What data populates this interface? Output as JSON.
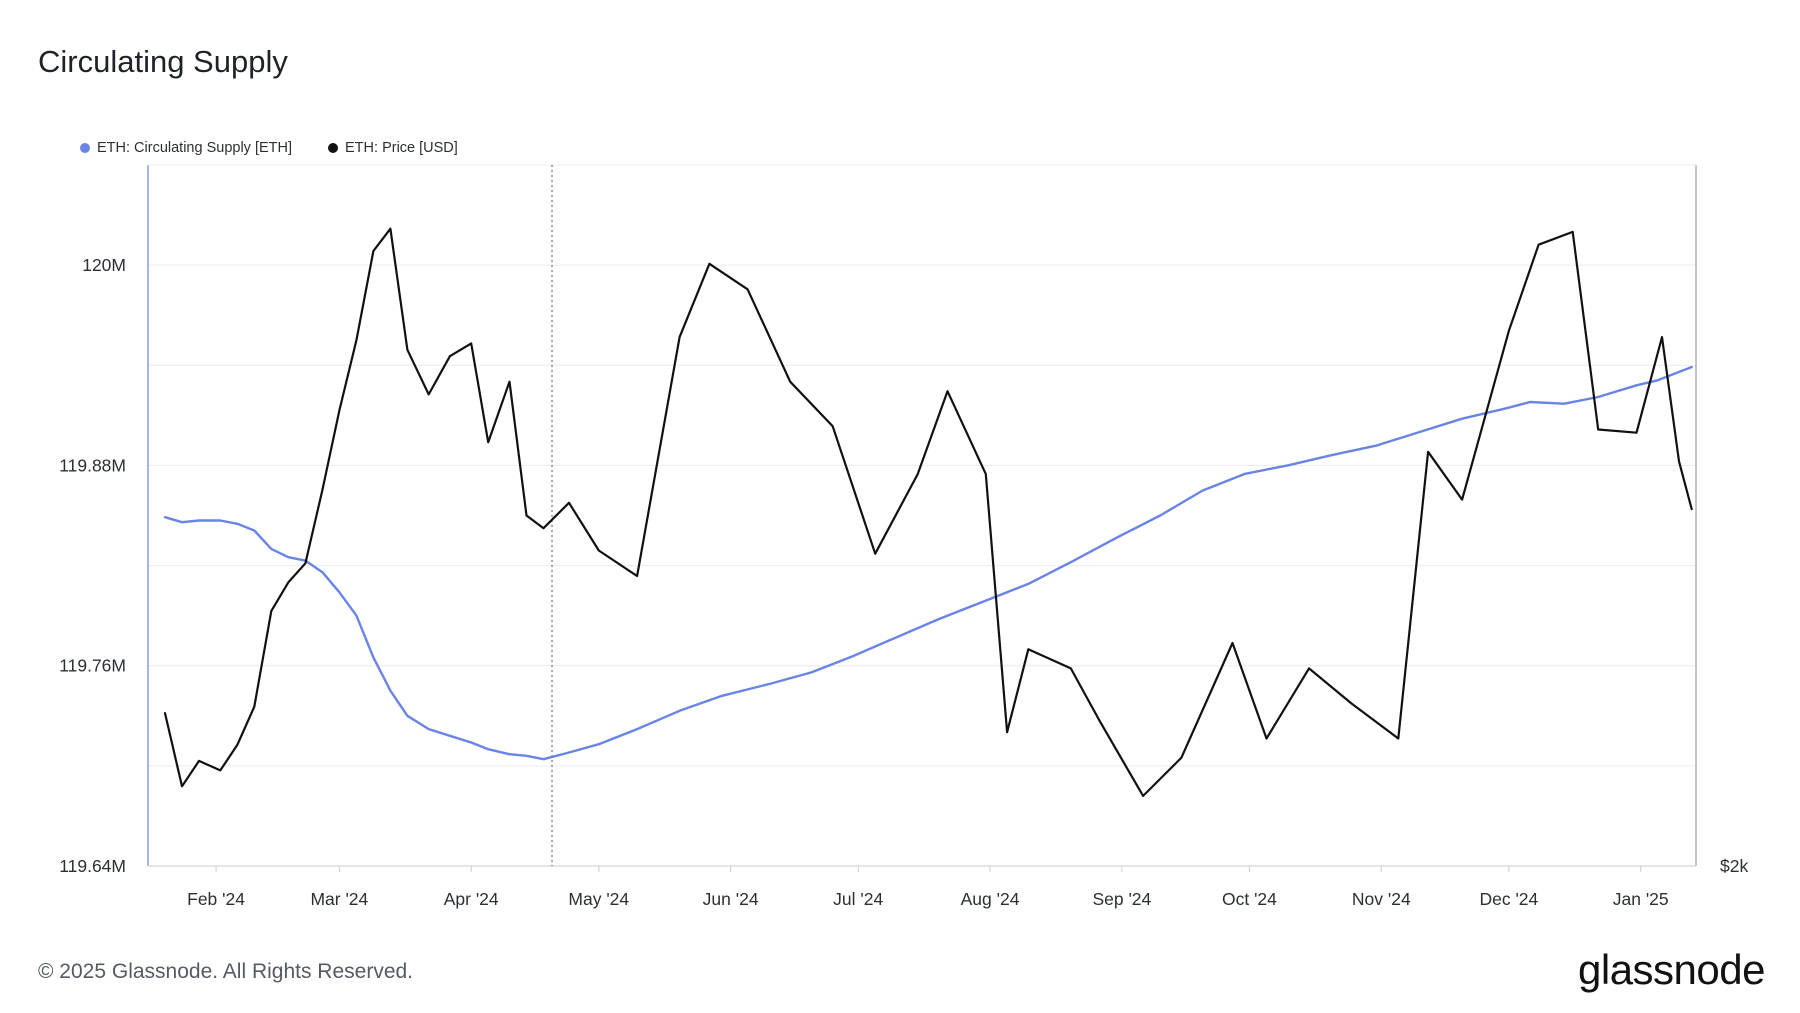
{
  "chart_data": {
    "type": "line",
    "title": "Circulating Supply",
    "legend_position": "top-left",
    "grid": true,
    "series": [
      {
        "name": "ETH: Circulating Supply [ETH]",
        "axis": "left",
        "color": "#6a84e6",
        "points": [
          [
            "2024-01-20",
            119.849
          ],
          [
            "2024-01-24",
            119.846
          ],
          [
            "2024-01-28",
            119.847
          ],
          [
            "2024-02-02",
            119.847
          ],
          [
            "2024-02-06",
            119.845
          ],
          [
            "2024-02-10",
            119.841
          ],
          [
            "2024-02-14",
            119.83
          ],
          [
            "2024-02-18",
            119.825
          ],
          [
            "2024-02-22",
            119.823
          ],
          [
            "2024-02-26",
            119.816
          ],
          [
            "2024-03-01",
            119.804
          ],
          [
            "2024-03-05",
            119.79
          ],
          [
            "2024-03-09",
            119.765
          ],
          [
            "2024-03-13",
            119.745
          ],
          [
            "2024-03-17",
            119.73
          ],
          [
            "2024-03-22",
            119.722
          ],
          [
            "2024-03-27",
            119.718
          ],
          [
            "2024-04-01",
            119.714
          ],
          [
            "2024-04-05",
            119.71
          ],
          [
            "2024-04-10",
            119.707
          ],
          [
            "2024-04-14",
            119.706
          ],
          [
            "2024-04-18",
            119.704
          ],
          [
            "2024-04-24",
            119.708
          ],
          [
            "2024-05-01",
            119.713
          ],
          [
            "2024-05-10",
            119.722
          ],
          [
            "2024-05-20",
            119.733
          ],
          [
            "2024-05-30",
            119.742
          ],
          [
            "2024-06-10",
            119.749
          ],
          [
            "2024-06-20",
            119.756
          ],
          [
            "2024-06-30",
            119.766
          ],
          [
            "2024-07-10",
            119.777
          ],
          [
            "2024-07-20",
            119.788
          ],
          [
            "2024-07-31",
            119.799
          ],
          [
            "2024-08-10",
            119.809
          ],
          [
            "2024-08-20",
            119.822
          ],
          [
            "2024-08-31",
            119.837
          ],
          [
            "2024-09-10",
            119.85
          ],
          [
            "2024-09-20",
            119.865
          ],
          [
            "2024-09-30",
            119.875
          ],
          [
            "2024-10-10",
            119.88
          ],
          [
            "2024-10-20",
            119.886
          ],
          [
            "2024-10-31",
            119.892
          ],
          [
            "2024-11-10",
            119.9
          ],
          [
            "2024-11-20",
            119.908
          ],
          [
            "2024-11-30",
            119.914
          ],
          [
            "2024-12-06",
            119.918
          ],
          [
            "2024-12-14",
            119.917
          ],
          [
            "2024-12-22",
            119.921
          ],
          [
            "2024-12-31",
            119.928
          ],
          [
            "2025-01-05",
            119.931
          ],
          [
            "2025-01-13",
            119.939
          ]
        ]
      },
      {
        "name": "ETH: Price [USD]",
        "axis": "right",
        "color": "#111111",
        "points": [
          [
            "2024-01-20",
            2480
          ],
          [
            "2024-01-24",
            2250
          ],
          [
            "2024-01-28",
            2330
          ],
          [
            "2024-02-02",
            2300
          ],
          [
            "2024-02-06",
            2380
          ],
          [
            "2024-02-10",
            2500
          ],
          [
            "2024-02-14",
            2800
          ],
          [
            "2024-02-18",
            2890
          ],
          [
            "2024-02-22",
            2950
          ],
          [
            "2024-02-26",
            3180
          ],
          [
            "2024-03-01",
            3430
          ],
          [
            "2024-03-05",
            3650
          ],
          [
            "2024-03-09",
            3930
          ],
          [
            "2024-03-13",
            4000
          ],
          [
            "2024-03-17",
            3620
          ],
          [
            "2024-03-22",
            3480
          ],
          [
            "2024-03-27",
            3600
          ],
          [
            "2024-04-01",
            3640
          ],
          [
            "2024-04-05",
            3330
          ],
          [
            "2024-04-10",
            3520
          ],
          [
            "2024-04-14",
            3100
          ],
          [
            "2024-04-18",
            3060
          ],
          [
            "2024-04-24",
            3140
          ],
          [
            "2024-05-01",
            2990
          ],
          [
            "2024-05-10",
            2910
          ],
          [
            "2024-05-20",
            3660
          ],
          [
            "2024-05-27",
            3890
          ],
          [
            "2024-06-05",
            3810
          ],
          [
            "2024-06-15",
            3520
          ],
          [
            "2024-06-25",
            3380
          ],
          [
            "2024-07-05",
            2980
          ],
          [
            "2024-07-15",
            3230
          ],
          [
            "2024-07-22",
            3490
          ],
          [
            "2024-07-31",
            3230
          ],
          [
            "2024-08-05",
            2420
          ],
          [
            "2024-08-10",
            2680
          ],
          [
            "2024-08-20",
            2620
          ],
          [
            "2024-08-27",
            2450
          ],
          [
            "2024-09-06",
            2220
          ],
          [
            "2024-09-15",
            2340
          ],
          [
            "2024-09-27",
            2700
          ],
          [
            "2024-10-05",
            2400
          ],
          [
            "2024-10-15",
            2620
          ],
          [
            "2024-10-25",
            2510
          ],
          [
            "2024-11-05",
            2400
          ],
          [
            "2024-11-12",
            3300
          ],
          [
            "2024-11-20",
            3150
          ],
          [
            "2024-12-01",
            3680
          ],
          [
            "2024-12-08",
            3950
          ],
          [
            "2024-12-16",
            3990
          ],
          [
            "2024-12-22",
            3370
          ],
          [
            "2024-12-31",
            3360
          ],
          [
            "2025-01-06",
            3660
          ],
          [
            "2025-01-10",
            3270
          ],
          [
            "2025-01-13",
            3120
          ]
        ]
      }
    ],
    "y_left": {
      "ticks": [
        "120M",
        "119.88M",
        "119.76M",
        "119.64M"
      ],
      "tick_values": [
        120.0,
        119.88,
        119.76,
        119.64
      ],
      "range": [
        119.64,
        120.06
      ],
      "unit": "M ETH"
    },
    "y_right": {
      "ticks": [
        "$2k"
      ],
      "tick_values": [
        2000
      ],
      "range": [
        2000,
        4200
      ]
    },
    "x_axis": {
      "ticks": [
        "Feb '24",
        "Mar '24",
        "Apr '24",
        "May '24",
        "Jun '24",
        "Jul '24",
        "Aug '24",
        "Sep '24",
        "Oct '24",
        "Nov '24",
        "Dec '24",
        "Jan '25"
      ],
      "tick_dates": [
        "2024-02-01",
        "2024-03-01",
        "2024-04-01",
        "2024-05-01",
        "2024-06-01",
        "2024-07-01",
        "2024-08-01",
        "2024-09-01",
        "2024-10-01",
        "2024-11-01",
        "2024-12-01",
        "2025-01-01"
      ],
      "range": [
        "2024-01-16",
        "2025-01-14"
      ]
    },
    "annotations": [
      {
        "type": "vertical-dotted-line",
        "date": "2024-04-20"
      }
    ]
  },
  "footer": {
    "copyright": "© 2025 Glassnode. All Rights Reserved.",
    "brand": "glassnode"
  },
  "colors": {
    "supply": "#6a84e6",
    "price": "#111111",
    "grid": "#e9ecf1",
    "axis": "#c6ccd6"
  }
}
